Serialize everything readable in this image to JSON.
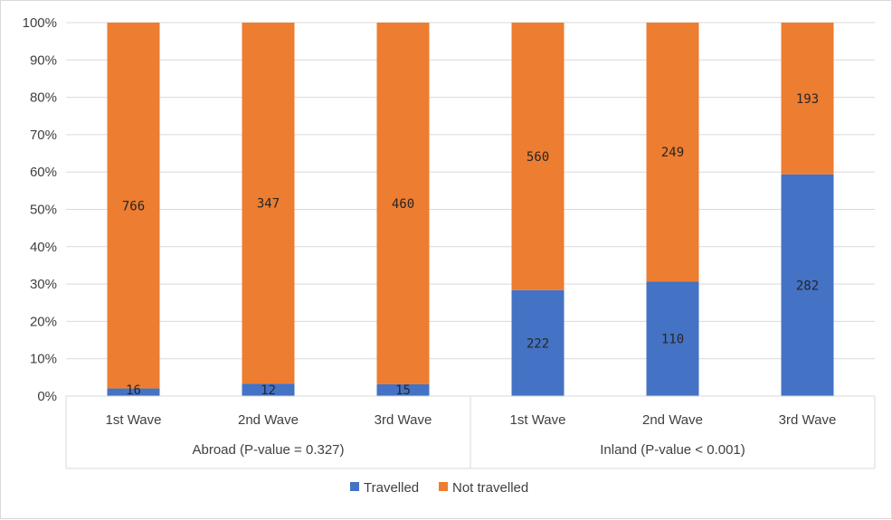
{
  "chart_data": {
    "type": "bar",
    "stacked": "percent",
    "categories": [
      "1st Wave",
      "2nd Wave",
      "3rd Wave",
      "1st Wave",
      "2nd Wave",
      "3rd Wave"
    ],
    "groups": [
      {
        "label": "Abroad (P-value = 0.327)",
        "categories": [
          0,
          1,
          2
        ]
      },
      {
        "label": "Inland (P-value < 0.001)",
        "categories": [
          3,
          4,
          5
        ]
      }
    ],
    "series": [
      {
        "name": "Travelled",
        "color": "#4472c4",
        "values": [
          16,
          12,
          15,
          222,
          110,
          282
        ]
      },
      {
        "name": "Not travelled",
        "color": "#ed7d31",
        "values": [
          766,
          347,
          460,
          560,
          249,
          193
        ]
      }
    ],
    "yticks": [
      "0%",
      "10%",
      "20%",
      "30%",
      "40%",
      "50%",
      "60%",
      "70%",
      "80%",
      "90%",
      "100%"
    ],
    "ylim": [
      0,
      100
    ],
    "grid": true,
    "legend_position": "bottom"
  }
}
